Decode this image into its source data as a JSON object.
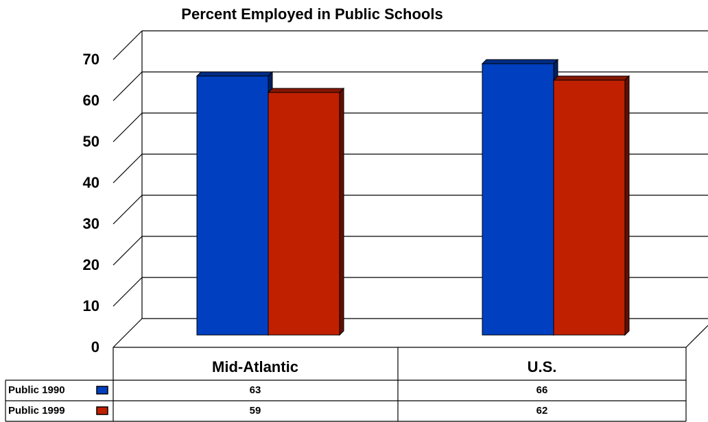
{
  "chart_data": {
    "type": "bar",
    "title": "Percent Employed in Public Schools",
    "categories": [
      "Mid-Atlantic",
      "U.S."
    ],
    "series": [
      {
        "name": "Public 1990",
        "color": "#0040c0",
        "values": [
          63,
          66
        ]
      },
      {
        "name": "Public 1999",
        "color": "#c02000",
        "values": [
          59,
          62
        ]
      }
    ],
    "ylim": [
      0,
      70
    ],
    "yticks": [
      0,
      10,
      20,
      30,
      40,
      50,
      60,
      70
    ],
    "grid": true
  }
}
